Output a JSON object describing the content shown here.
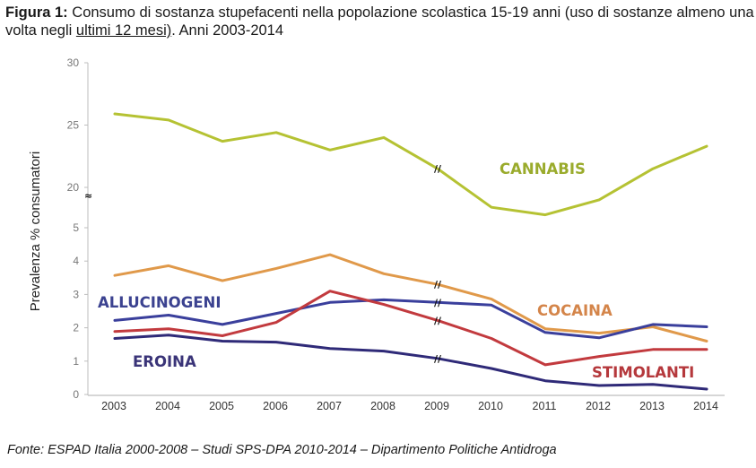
{
  "caption": {
    "prefix": "Figura 1:",
    "text_part1": " Consumo di sostanza stupefacenti nella popolazione scolastica 15-19 anni (uso di sostanze almeno una volta negli ",
    "underlined": "ultimi 12 mesi)",
    "text_part2": ". Anni 2003-2014"
  },
  "source": "Fonte: ESPAD Italia 2000-2008 – Studi SPS-DPA 2010-2014 – Dipartimento Politiche Antidroga",
  "chart_data": {
    "type": "line",
    "title": "Consumo di sostanza stupefacenti nella popolazione scolastica 15-19 anni (uso di sostanze almeno una volta negli ultimi 12 mesi). Anni 2003-2014",
    "xlabel": "",
    "ylabel": "Prevalenza % consumatori",
    "x": [
      "2003",
      "2004",
      "2005",
      "2006",
      "2007",
      "2008",
      "2009",
      "2010",
      "2011",
      "2012",
      "2013",
      "2014"
    ],
    "y_axis": {
      "broken": true,
      "lower_segment": {
        "range": [
          0,
          5
        ],
        "ticks": [
          "0",
          "1",
          "2",
          "3",
          "4",
          "5"
        ]
      },
      "upper_segment": {
        "range": [
          20,
          30
        ],
        "ticks": [
          "20",
          "25",
          "30"
        ]
      }
    },
    "grid": false,
    "series_break_year": "2009",
    "series": [
      {
        "name": "CANNABIS",
        "segment": "upper",
        "color": "#b5c233",
        "label_color": "#9aab2c",
        "values": [
          25.9,
          25.4,
          23.7,
          24.4,
          23.0,
          24.0,
          21.5,
          18.4,
          17.8,
          19.0,
          21.5,
          23.3
        ]
      },
      {
        "name": "COCAINA",
        "segment": "lower",
        "color": "#e0994a",
        "label_color": "#d4854a",
        "values": [
          3.57,
          3.86,
          3.41,
          3.78,
          4.19,
          3.62,
          3.3,
          2.86,
          1.97,
          1.84,
          2.03,
          1.6
        ]
      },
      {
        "name": "ALLUCINOGENI",
        "segment": "lower",
        "color": "#3a3f9c",
        "label_color": "#3b4290",
        "values": [
          2.22,
          2.38,
          2.1,
          2.43,
          2.76,
          2.84,
          2.76,
          2.68,
          1.86,
          1.7,
          2.1,
          2.03
        ]
      },
      {
        "name": "STIMOLANTI",
        "segment": "lower",
        "color": "#c23a3e",
        "label_color": "#b5383c",
        "values": [
          1.89,
          1.97,
          1.76,
          2.16,
          3.1,
          2.7,
          2.22,
          1.68,
          0.89,
          1.14,
          1.35,
          1.35
        ]
      },
      {
        "name": "EROINA",
        "segment": "lower",
        "color": "#2f2a78",
        "label_color": "#3a3478",
        "values": [
          1.68,
          1.78,
          1.6,
          1.57,
          1.38,
          1.3,
          1.08,
          0.78,
          0.41,
          0.27,
          0.3,
          0.16
        ]
      }
    ],
    "legend": "inline-labels"
  }
}
